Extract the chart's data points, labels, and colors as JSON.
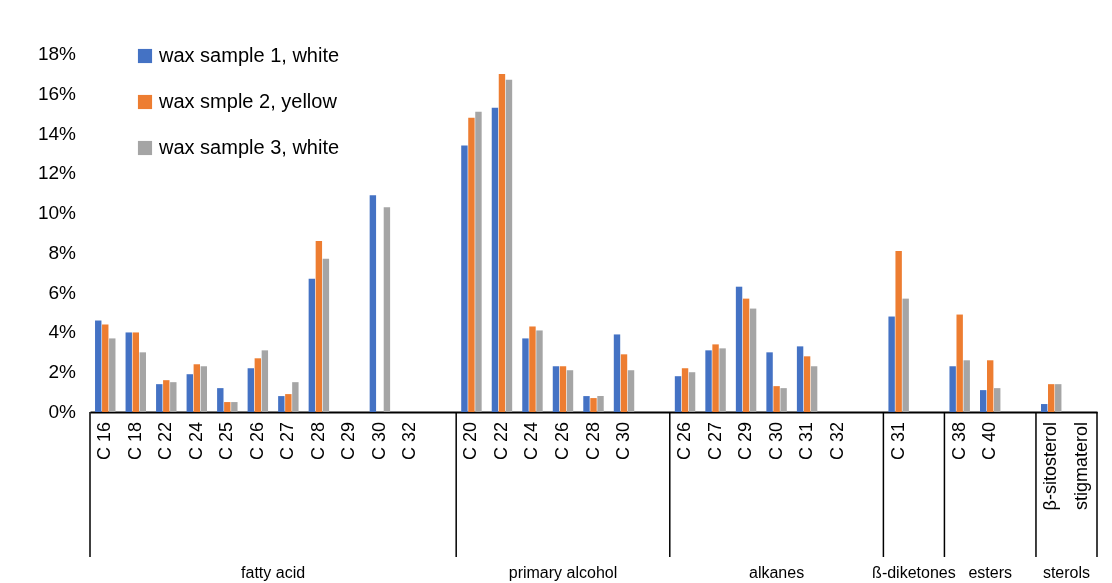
{
  "chart_data": {
    "type": "bar",
    "categories": [
      "C 16",
      "C 18",
      "C 22",
      "C 24",
      "C 25",
      "C 26",
      "C 27",
      "C 28",
      "C 29",
      "C 30",
      "C 32",
      null,
      "C 20",
      "C 22",
      "C 24",
      "C 26",
      "C 28",
      "C 30",
      null,
      "C 26",
      "C 27",
      "C 29",
      "C 30",
      "C 31",
      "C 32",
      null,
      "C 31",
      null,
      "C 38",
      "C 40",
      null,
      "β-sitosterol",
      "stigmaterol"
    ],
    "series": [
      {
        "name": "wax sample 1, white",
        "color": "#4472c4",
        "values": [
          4.6,
          4.0,
          1.4,
          1.9,
          1.2,
          2.2,
          0.8,
          6.7,
          null,
          10.9,
          null,
          null,
          13.4,
          15.3,
          3.7,
          2.3,
          0.8,
          3.9,
          null,
          1.8,
          3.1,
          6.3,
          3.0,
          3.3,
          null,
          null,
          4.8,
          null,
          2.3,
          1.1,
          null,
          0.4,
          null
        ]
      },
      {
        "name": "wax smple 2, yellow",
        "color": "#ed7d31",
        "values": [
          4.4,
          4.0,
          1.6,
          2.4,
          0.5,
          2.7,
          0.9,
          8.6,
          null,
          null,
          null,
          null,
          14.8,
          17.0,
          4.3,
          2.3,
          0.7,
          2.9,
          null,
          2.2,
          3.4,
          5.7,
          1.3,
          2.8,
          null,
          null,
          8.1,
          null,
          4.9,
          2.6,
          null,
          1.4,
          null
        ]
      },
      {
        "name": "wax sample 3, white",
        "color": "#a5a5a5",
        "values": [
          3.7,
          3.0,
          1.5,
          2.3,
          0.5,
          3.1,
          1.5,
          7.7,
          null,
          10.3,
          null,
          null,
          15.1,
          16.7,
          4.1,
          2.1,
          0.8,
          2.1,
          null,
          2.0,
          3.2,
          5.2,
          1.2,
          2.3,
          null,
          null,
          5.7,
          null,
          2.6,
          1.2,
          null,
          1.4,
          null
        ]
      }
    ],
    "ylim": [
      0,
      18
    ],
    "yticks": [
      {
        "value": 0,
        "label": "0%"
      },
      {
        "value": 2,
        "label": "2%"
      },
      {
        "value": 4,
        "label": "4%"
      },
      {
        "value": 6,
        "label": "6%"
      },
      {
        "value": 8,
        "label": "8%"
      },
      {
        "value": 10,
        "label": "10%"
      },
      {
        "value": 12,
        "label": "12%"
      },
      {
        "value": 14,
        "label": "14%"
      },
      {
        "value": 16,
        "label": "16%"
      },
      {
        "value": 18,
        "label": "18%"
      }
    ],
    "legend": "top left",
    "annotations": [
      "fatty acid",
      "primary alcohol",
      "alkanes",
      "ß-diketones",
      "esters",
      "sterols"
    ]
  }
}
